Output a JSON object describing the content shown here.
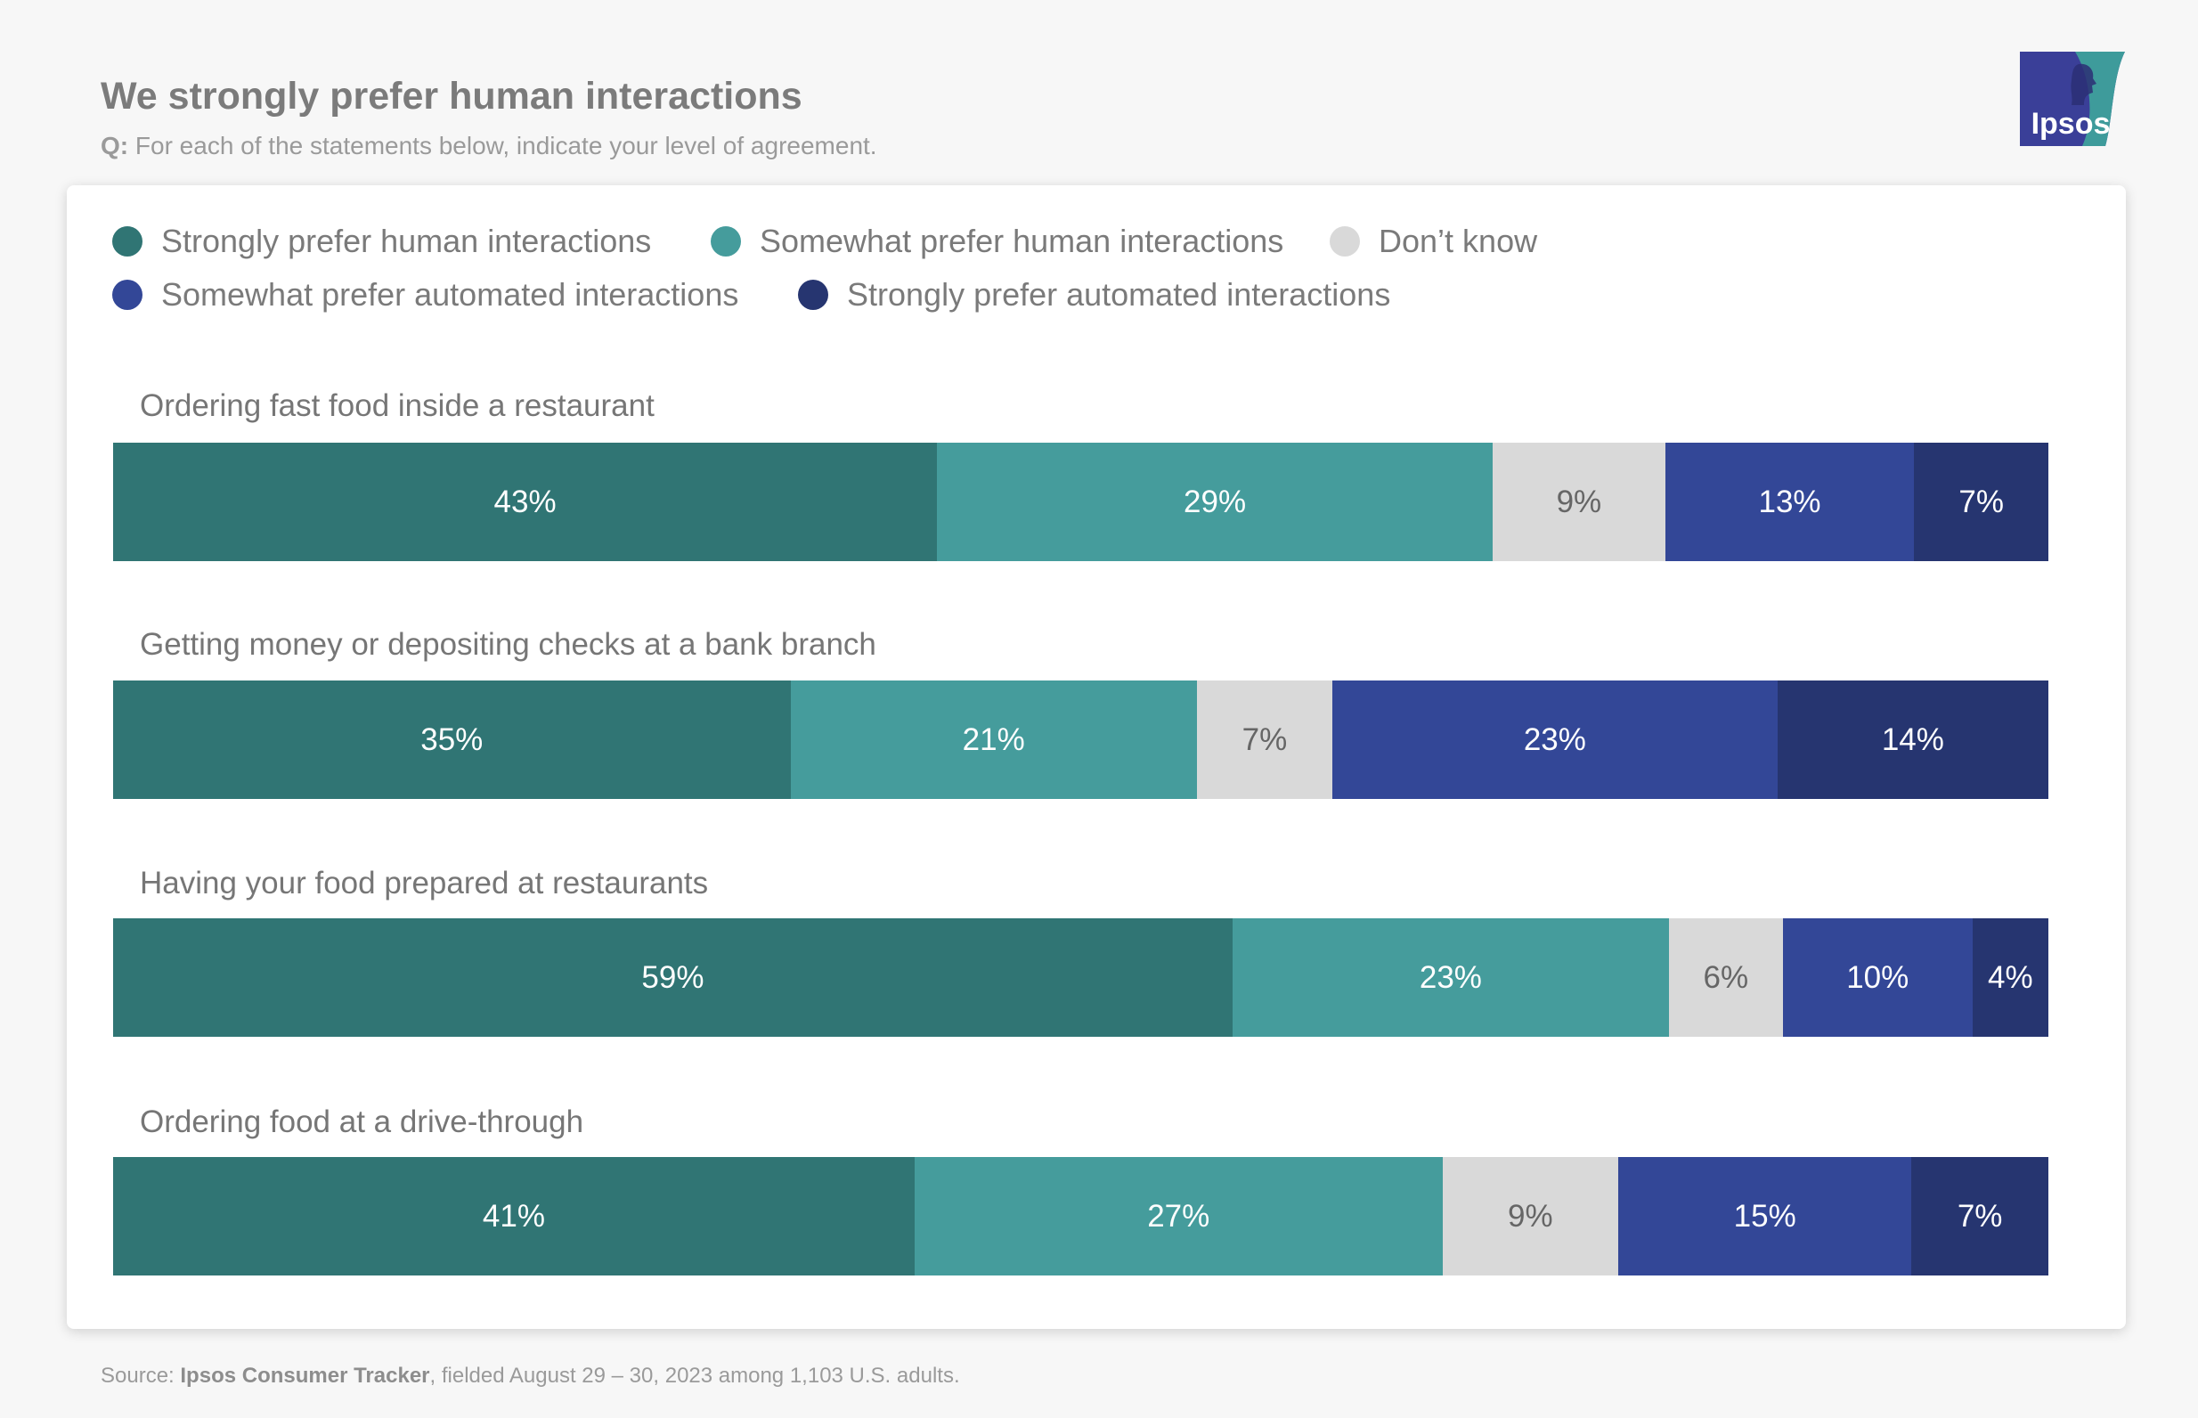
{
  "header": {
    "title": "We strongly prefer human interactions",
    "question_prefix": "Q:",
    "question_text": " For each of the statements below, indicate your level of agreement."
  },
  "logo": {
    "text": "Ipsos",
    "colors": {
      "blue": "#3a3f98",
      "teal": "#3e9b9b"
    }
  },
  "source": {
    "prefix": "Source: ",
    "name": "Ipsos Consumer Tracker",
    "text": ", fielded August 29 – 30, 2023 among 1,103 U.S. adults."
  },
  "chart_data": {
    "type": "bar",
    "orientation": "horizontal",
    "stacked": true,
    "normalized_percent": true,
    "legend_placement": "top",
    "categories": [
      "Ordering fast food inside a restaurant",
      "Getting money or depositing checks at a bank branch",
      "Having your food prepared at restaurants",
      "Ordering food at a drive-through"
    ],
    "series": [
      {
        "name": "Strongly prefer human interactions",
        "color": "#307574",
        "values": [
          43,
          35,
          59,
          41
        ]
      },
      {
        "name": "Somewhat prefer human interactions",
        "color": "#459c9c",
        "values": [
          29,
          21,
          23,
          27
        ]
      },
      {
        "name": "Don’t know",
        "color": "#d9d9d9",
        "values": [
          9,
          7,
          6,
          9
        ]
      },
      {
        "name": "Somewhat prefer automated interactions",
        "color": "#334797",
        "values": [
          13,
          23,
          10,
          15
        ]
      },
      {
        "name": "Strongly prefer automated interactions",
        "color": "#263570",
        "values": [
          7,
          14,
          4,
          7
        ]
      }
    ],
    "value_suffix": "%"
  }
}
